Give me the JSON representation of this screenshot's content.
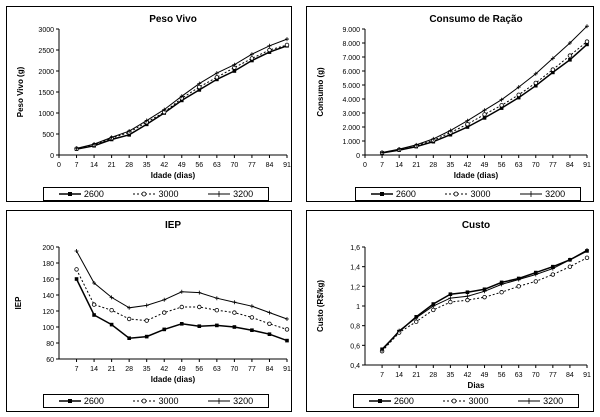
{
  "chart_data": [
    {
      "type": "line",
      "title": "Peso Vivo",
      "xlabel": "Idade (dias)",
      "ylabel": "Peso Vivo (g)",
      "x": [
        0,
        7,
        14,
        21,
        28,
        35,
        42,
        49,
        56,
        63,
        70,
        77,
        84,
        91
      ],
      "xlim": [
        0,
        91
      ],
      "ylim": [
        0,
        3000
      ],
      "yticks": [
        "0",
        "500",
        "1000",
        "1500",
        "2000",
        "2500",
        "3000"
      ],
      "ytick_values": [
        0,
        500,
        1000,
        1500,
        2000,
        2500,
        3000
      ],
      "series": [
        {
          "name": "2600",
          "x": [
            7,
            14,
            21,
            28,
            35,
            42,
            49,
            56,
            63,
            70,
            77,
            84,
            91
          ],
          "values": [
            140,
            220,
            370,
            480,
            730,
            1000,
            1300,
            1550,
            1800,
            2000,
            2250,
            2450,
            2600
          ]
        },
        {
          "name": "3000",
          "x": [
            7,
            14,
            21,
            28,
            35,
            42,
            49,
            56,
            63,
            70,
            77,
            84,
            91
          ],
          "values": [
            150,
            240,
            400,
            540,
            780,
            1020,
            1350,
            1620,
            1850,
            2080,
            2300,
            2500,
            2620
          ]
        },
        {
          "name": "3200",
          "x": [
            7,
            14,
            21,
            28,
            35,
            42,
            49,
            56,
            63,
            70,
            77,
            84,
            91
          ],
          "values": [
            160,
            260,
            420,
            570,
            820,
            1080,
            1400,
            1700,
            1950,
            2150,
            2400,
            2600,
            2760
          ]
        }
      ],
      "legend": "bottom"
    },
    {
      "type": "line",
      "title": "Consumo de Ração",
      "xlabel": "Idade (dias)",
      "ylabel": "Consumo (g)",
      "x": [
        0,
        7,
        14,
        21,
        28,
        35,
        42,
        49,
        56,
        63,
        70,
        77,
        84,
        91
      ],
      "xlim": [
        0,
        91
      ],
      "ylim": [
        0,
        9000
      ],
      "yticks": [
        "0",
        "1.000",
        "2.000",
        "3.000",
        "4.000",
        "5.000",
        "6.000",
        "7.000",
        "8.000",
        "9.000"
      ],
      "ytick_values": [
        0,
        1000,
        2000,
        3000,
        4000,
        5000,
        6000,
        7000,
        8000,
        9000
      ],
      "series": [
        {
          "name": "2600",
          "x": [
            7,
            14,
            21,
            28,
            35,
            42,
            49,
            56,
            63,
            70,
            77,
            84,
            91
          ],
          "values": [
            150,
            350,
            600,
            950,
            1450,
            2000,
            2650,
            3350,
            4100,
            4950,
            5900,
            6800,
            7900
          ]
        },
        {
          "name": "3000",
          "x": [
            7,
            14,
            21,
            28,
            35,
            42,
            49,
            56,
            63,
            70,
            77,
            84,
            91
          ],
          "values": [
            160,
            380,
            650,
            1050,
            1600,
            2200,
            2900,
            3550,
            4300,
            5150,
            6100,
            7100,
            8100
          ]
        },
        {
          "name": "3200",
          "x": [
            7,
            14,
            21,
            28,
            35,
            42,
            49,
            56,
            63,
            70,
            77,
            84,
            91
          ],
          "values": [
            180,
            420,
            720,
            1150,
            1750,
            2450,
            3200,
            3950,
            4850,
            5800,
            6900,
            8000,
            9200
          ]
        }
      ],
      "legend": "bottom"
    },
    {
      "type": "line",
      "title": "IEP",
      "xlabel": "Idade (dias)",
      "ylabel": "IEP",
      "x": [
        0,
        7,
        14,
        21,
        28,
        35,
        42,
        49,
        56,
        63,
        70,
        77,
        84,
        91
      ],
      "xlim": [
        0,
        91
      ],
      "ylim": [
        60,
        200
      ],
      "yticks": [
        "60",
        "80",
        "100",
        "120",
        "140",
        "160",
        "180",
        "200"
      ],
      "ytick_values": [
        60,
        80,
        100,
        120,
        140,
        160,
        180,
        200
      ],
      "series": [
        {
          "name": "2600",
          "x": [
            7,
            14,
            21,
            28,
            35,
            42,
            49,
            56,
            63,
            70,
            77,
            84,
            91
          ],
          "values": [
            160,
            115,
            103,
            86,
            88,
            97,
            104,
            101,
            102,
            100,
            96,
            91,
            83
          ]
        },
        {
          "name": "3000",
          "x": [
            7,
            14,
            21,
            28,
            35,
            42,
            49,
            56,
            63,
            70,
            77,
            84,
            91
          ],
          "values": [
            172,
            128,
            121,
            110,
            108,
            118,
            125,
            125,
            121,
            118,
            112,
            104,
            97
          ]
        },
        {
          "name": "3200",
          "x": [
            7,
            14,
            21,
            28,
            35,
            42,
            49,
            56,
            63,
            70,
            77,
            84,
            91
          ],
          "values": [
            195,
            155,
            137,
            124,
            127,
            134,
            144,
            143,
            136,
            131,
            126,
            118,
            110
          ]
        }
      ],
      "legend": "bottom"
    },
    {
      "type": "line",
      "title": "Custo",
      "xlabel": "Dias",
      "ylabel": "Custo (R$/kg)",
      "x": [
        0,
        7,
        14,
        21,
        28,
        35,
        42,
        49,
        56,
        63,
        70,
        77,
        84,
        91
      ],
      "xlim": [
        0,
        91
      ],
      "ylim": [
        0.4,
        1.6
      ],
      "yticks": [
        "0,4",
        "0,6",
        "0,8",
        "1",
        "1,2",
        "1,4",
        "1,6"
      ],
      "ytick_values": [
        0.4,
        0.6,
        0.8,
        1.0,
        1.2,
        1.4,
        1.6
      ],
      "series": [
        {
          "name": "2600",
          "x": [
            7,
            14,
            21,
            28,
            35,
            42,
            49,
            56,
            63,
            70,
            77,
            84,
            91
          ],
          "values": [
            0.56,
            0.74,
            0.89,
            1.02,
            1.12,
            1.14,
            1.17,
            1.24,
            1.28,
            1.34,
            1.4,
            1.47,
            1.56
          ]
        },
        {
          "name": "3000",
          "x": [
            7,
            14,
            21,
            28,
            35,
            42,
            49,
            56,
            63,
            70,
            77,
            84,
            91
          ],
          "values": [
            0.54,
            0.73,
            0.84,
            0.96,
            1.04,
            1.06,
            1.09,
            1.14,
            1.2,
            1.25,
            1.32,
            1.4,
            1.49
          ]
        },
        {
          "name": "3200",
          "x": [
            7,
            14,
            21,
            28,
            35,
            42,
            49,
            56,
            63,
            70,
            77,
            84,
            91
          ],
          "values": [
            0.55,
            0.75,
            0.88,
            1.0,
            1.08,
            1.1,
            1.15,
            1.22,
            1.27,
            1.32,
            1.38,
            1.47,
            1.57
          ]
        }
      ],
      "legend": "bottom"
    }
  ],
  "legend_labels": [
    "2600",
    "3000",
    "3200"
  ]
}
